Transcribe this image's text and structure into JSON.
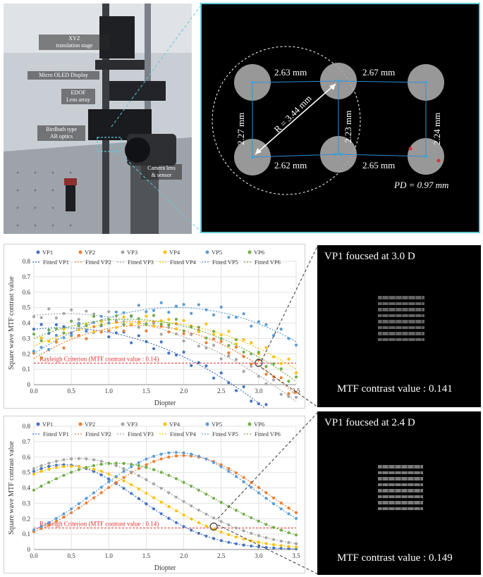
{
  "photo": {
    "labels": [
      {
        "text": "XYZ\ntranslation stage"
      },
      {
        "text": "Micro OLED Display"
      },
      {
        "text": "EDOF\nLens array"
      },
      {
        "text": "Birdbath type\nAR optics"
      },
      {
        "text": "Camera lens\n& sensor"
      }
    ]
  },
  "viewer": {
    "top_left_dist": "2.63 mm",
    "top_right_dist": "2.67 mm",
    "bottom_left_dist": "2.62 mm",
    "bottom_right_dist": "2.65 mm",
    "left_vert": "2.27 mm",
    "mid_vert": "2.23 mm",
    "right_vert": "2.24 mm",
    "radius": "R = 3.44 mm",
    "pd": "PD = 0.97 mm"
  },
  "patterns": [
    {
      "title": "VP1 foucsed at 3.0 D",
      "value": "MTF contrast value : 0.141"
    },
    {
      "title": "VP1 foucsed at 2.4 D",
      "value": "MTF contrast value : 0.149"
    }
  ],
  "colors": {
    "VP1": "#4472c4",
    "VP2": "#ed7d31",
    "VP3": "#a5a5a5",
    "VP4": "#ffc000",
    "VP5": "#5b9bd5",
    "VP6": "#70ad47",
    "rayleigh": "#e03030",
    "accent": "#62c9d4"
  },
  "chart_data": [
    {
      "type": "scatter",
      "ylabel": "Square wave MTF contrast value",
      "xlabel": "Diopter",
      "xlim": [
        0,
        3.5
      ],
      "ylim": [
        0,
        0.8
      ],
      "xticks": [
        "0.0",
        "0.5",
        "1.0",
        "1.5",
        "2.0",
        "2.5",
        "3.0",
        "3.5"
      ],
      "yticks": [
        "0",
        "0.1",
        "0.2",
        "0.3",
        "0.4",
        "0.5",
        "0.6",
        "0.7",
        "0.8"
      ],
      "grid": true,
      "legend": "top",
      "legend_entries": [
        "VP1",
        "VP2",
        "VP3",
        "VP4",
        "VP5",
        "VP6",
        "Fitted VP1",
        "Fitted VP2",
        "Fitted VP3",
        "Fitted VP4",
        "Fitted VP5",
        "Fitted VP6"
      ],
      "rayleigh": {
        "value": 0.14,
        "label": "Rayleigh Criterion (MTF contrast value : 0.14)"
      },
      "marker": {
        "x": 3.0,
        "y": 0.141
      },
      "series": [
        {
          "name": "VP1",
          "fit": [
            0.36,
            0.05,
            -0.07
          ]
        },
        {
          "name": "VP2",
          "fit": [
            0.17,
            0.3,
            -0.105
          ]
        },
        {
          "name": "VP3",
          "fit": [
            0.45,
            0.05,
            -0.06
          ]
        },
        {
          "name": "VP4",
          "fit": [
            0.25,
            0.22,
            -0.075
          ]
        },
        {
          "name": "VP5",
          "fit": [
            0.2,
            0.32,
            -0.085
          ]
        },
        {
          "name": "VP6",
          "fit": [
            0.3,
            0.2,
            -0.08
          ]
        }
      ]
    },
    {
      "type": "scatter",
      "ylabel": "Square wave MTF contrast value",
      "xlabel": "Diopter",
      "xlim": [
        0,
        3.5
      ],
      "ylim": [
        0,
        0.8
      ],
      "xticks": [
        "0.0",
        "0.5",
        "1.0",
        "1.5",
        "2.0",
        "2.5",
        "3.0",
        "3.5"
      ],
      "yticks": [
        "0",
        "0.1",
        "0.2",
        "0.3",
        "0.4",
        "0.5",
        "0.6",
        "0.7",
        "0.8"
      ],
      "grid": true,
      "legend": "top",
      "legend_entries": [
        "VP1",
        "VP2",
        "VP3",
        "VP4",
        "VP5",
        "VP6",
        "Fitted VP1",
        "Fitted VP2",
        "Fitted VP3",
        "Fitted VP4",
        "Fitted VP5",
        "Fitted VP6"
      ],
      "rayleigh": {
        "value": 0.14,
        "label": "Rayleigh Criterion (MTF contrast value : 0.14)"
      },
      "marker": {
        "x": 2.4,
        "y": 0.149
      },
      "series": [
        {
          "name": "VP1",
          "peak_x": 0.4,
          "peak_y": 0.55,
          "width": 1.4
        },
        {
          "name": "VP2",
          "peak_x": 2.0,
          "peak_y": 0.61,
          "width": 1.55
        },
        {
          "name": "VP3",
          "peak_x": 0.6,
          "peak_y": 0.59,
          "width": 1.75
        },
        {
          "name": "VP4",
          "peak_x": 0.5,
          "peak_y": 0.54,
          "width": 1.6
        },
        {
          "name": "VP5",
          "peak_x": 1.9,
          "peak_y": 0.63,
          "width": 1.5
        },
        {
          "name": "VP6",
          "peak_x": 1.1,
          "peak_y": 0.56,
          "width": 1.8
        }
      ]
    }
  ]
}
